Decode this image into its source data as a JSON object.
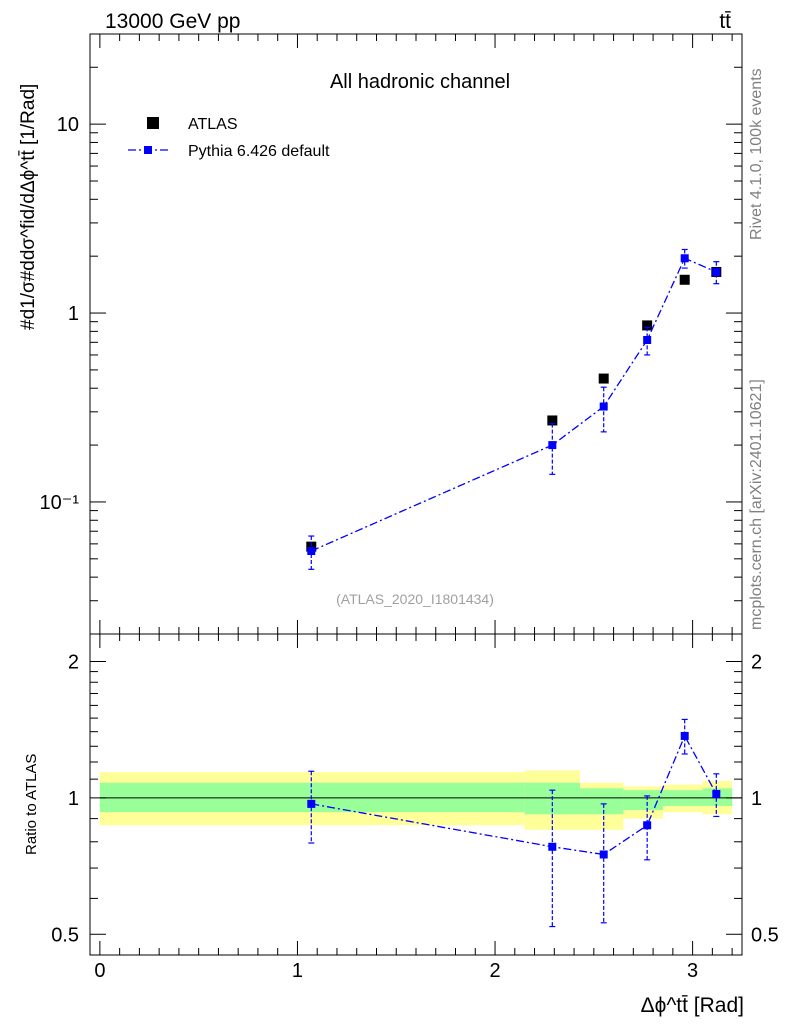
{
  "header": {
    "left": "13000 GeV pp",
    "right": "tt̄"
  },
  "side_labels": {
    "rivet": "Rivet 4.1.0,  100k events",
    "mcplots": "mcplots.cern.ch [arXiv:2401.10621]"
  },
  "chart_data": [
    {
      "type": "scatter",
      "title": "All hadronic channel",
      "watermark": "(ATLAS_2020_I1801434)",
      "ylabel": "#d1/σ#ddσ^fid/dΔϕ^tt̄ [1/Rad]",
      "yscale": "log",
      "ylim": [
        0.02,
        30
      ],
      "xlim": [
        -0.05,
        3.25
      ],
      "ytick_labels": [
        "10⁻¹",
        "1",
        "10"
      ],
      "legend": {
        "position": "top-left",
        "entries": [
          "ATLAS",
          "Pythia 6.426 default"
        ]
      },
      "series": [
        {
          "name": "ATLAS",
          "color": "#000000",
          "marker": "square",
          "x": [
            1.07,
            2.29,
            2.55,
            2.77,
            2.96,
            3.12
          ],
          "y": [
            0.058,
            0.27,
            0.45,
            0.86,
            1.5,
            1.65
          ]
        },
        {
          "name": "Pythia 6.426 default",
          "color": "#0000ff",
          "marker": "square",
          "line": "dash-dot",
          "x": [
            1.07,
            2.29,
            2.55,
            2.77,
            2.96,
            3.12
          ],
          "y": [
            0.055,
            0.2,
            0.32,
            0.72,
            1.95,
            1.65
          ],
          "y_err": [
            0.011,
            0.06,
            0.085,
            0.12,
            0.22,
            0.22
          ]
        }
      ]
    },
    {
      "type": "scatter",
      "xlabel": "Δϕ^tt̄ [Rad]",
      "ylabel": "Ratio to ATLAS",
      "yscale": "log",
      "ylim": [
        0.45,
        2.3
      ],
      "xlim": [
        -0.05,
        3.25
      ],
      "xtick_labels": [
        "0",
        "1",
        "2",
        "3"
      ],
      "ytick_labels": [
        "0.5",
        "1",
        "2"
      ],
      "bands": [
        {
          "x_edges": [
            0,
            2.15,
            2.43,
            2.65,
            2.85,
            3.05,
            3.2
          ],
          "yellow_lo": [
            0.87,
            0.85,
            0.85,
            0.9,
            0.93,
            0.92
          ],
          "yellow_hi": [
            1.14,
            1.15,
            1.08,
            1.06,
            1.07,
            1.09
          ],
          "green_lo": [
            0.93,
            0.92,
            0.92,
            0.94,
            0.96,
            0.96
          ],
          "green_hi": [
            1.08,
            1.08,
            1.05,
            1.04,
            1.04,
            1.05
          ]
        }
      ],
      "series": [
        {
          "name": "Pythia 6.426 default",
          "color": "#0000ff",
          "marker": "square",
          "line": "dash-dot",
          "x": [
            1.07,
            2.29,
            2.55,
            2.77,
            2.96,
            3.12
          ],
          "y": [
            0.97,
            0.78,
            0.75,
            0.87,
            1.37,
            1.02
          ],
          "y_err": [
            0.175,
            0.26,
            0.22,
            0.14,
            0.12,
            0.11
          ]
        }
      ]
    }
  ]
}
